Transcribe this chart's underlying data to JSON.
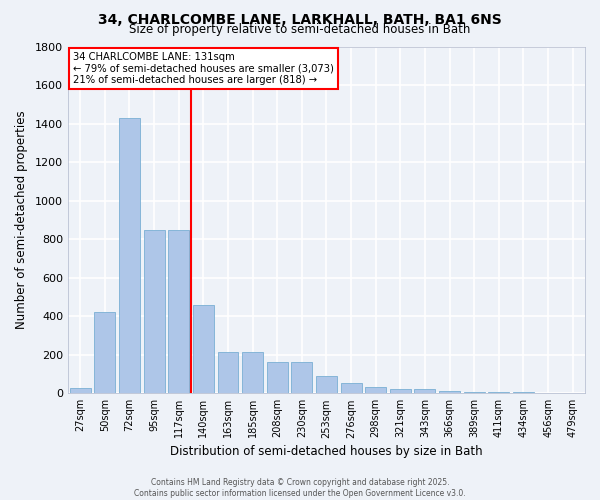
{
  "title": "34, CHARLCOMBE LANE, LARKHALL, BATH, BA1 6NS",
  "subtitle": "Size of property relative to semi-detached houses in Bath",
  "xlabel": "Distribution of semi-detached houses by size in Bath",
  "ylabel": "Number of semi-detached properties",
  "categories": [
    "27sqm",
    "50sqm",
    "72sqm",
    "95sqm",
    "117sqm",
    "140sqm",
    "163sqm",
    "185sqm",
    "208sqm",
    "230sqm",
    "253sqm",
    "276sqm",
    "298sqm",
    "321sqm",
    "343sqm",
    "366sqm",
    "389sqm",
    "411sqm",
    "434sqm",
    "456sqm",
    "479sqm"
  ],
  "values": [
    30,
    420,
    1430,
    850,
    850,
    460,
    215,
    215,
    160,
    160,
    90,
    55,
    35,
    25,
    20,
    10,
    7,
    7,
    5,
    3,
    3
  ],
  "bar_color": "#aec6e8",
  "bar_edge_color": "#7aafd4",
  "vline_x": 4.5,
  "vline_color": "red",
  "annotation_text": "34 CHARLCOMBE LANE: 131sqm\n← 79% of semi-detached houses are smaller (3,073)\n21% of semi-detached houses are larger (818) →",
  "ylim": [
    0,
    1800
  ],
  "yticks": [
    0,
    200,
    400,
    600,
    800,
    1000,
    1200,
    1400,
    1600,
    1800
  ],
  "bg_color": "#eef2f8",
  "grid_color": "#ffffff",
  "footer_line1": "Contains HM Land Registry data © Crown copyright and database right 2025.",
  "footer_line2": "Contains public sector information licensed under the Open Government Licence v3.0."
}
